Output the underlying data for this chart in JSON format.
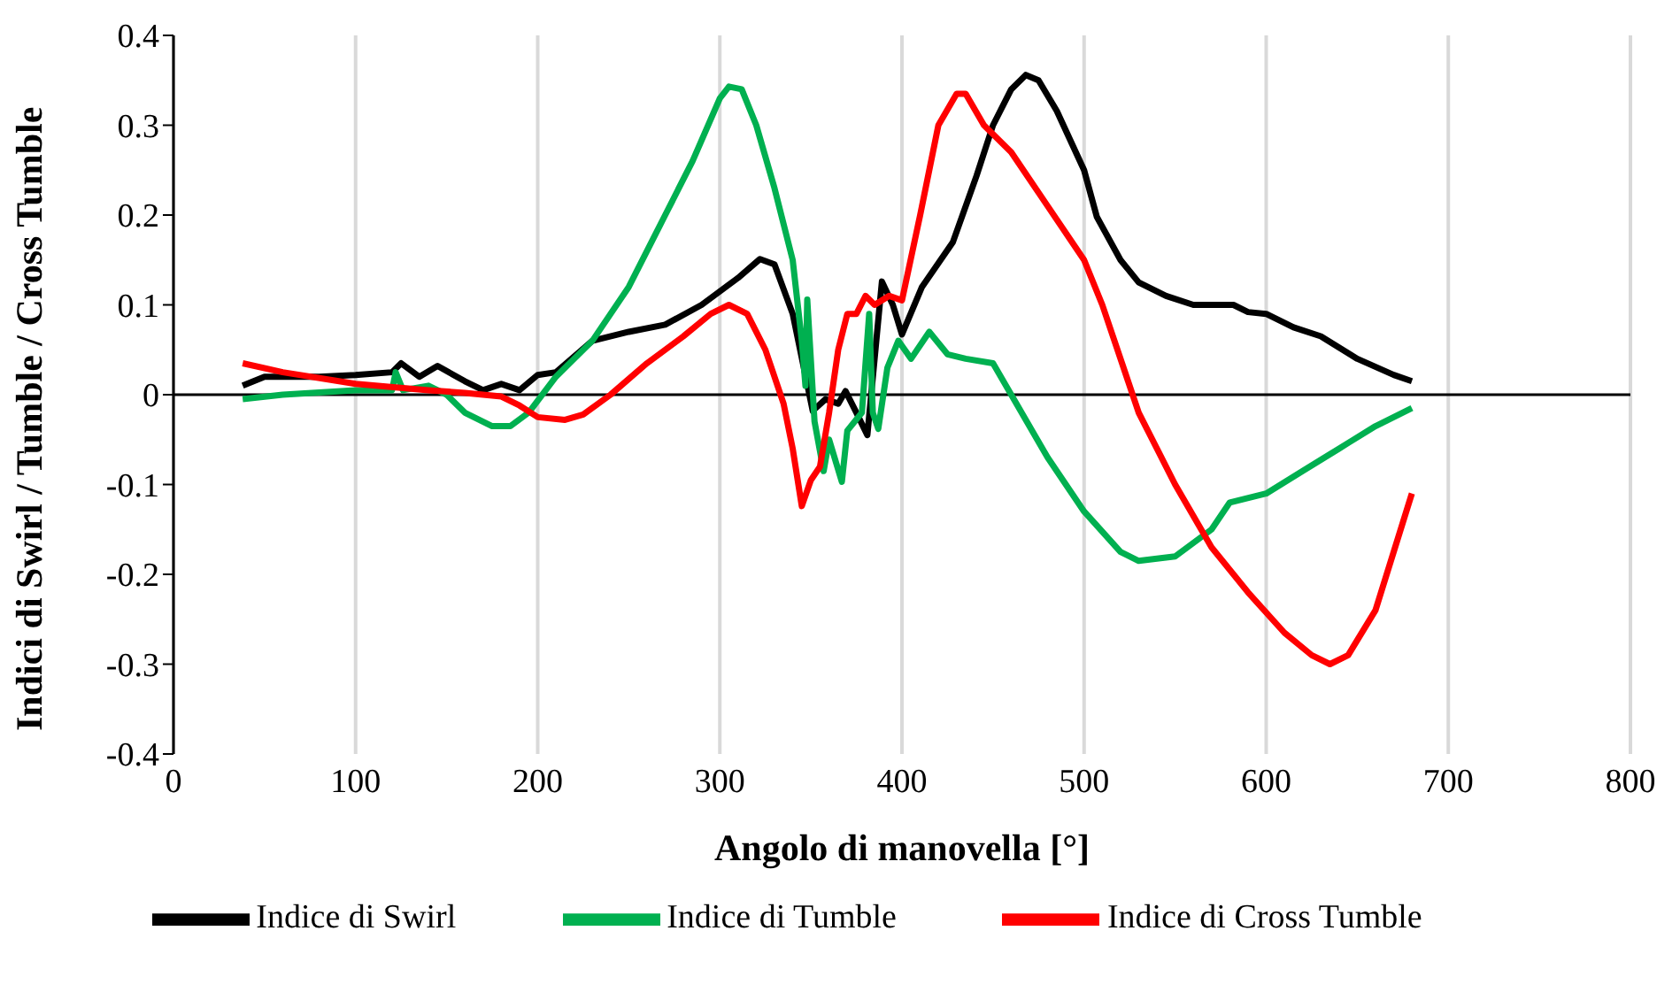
{
  "chart_data": {
    "type": "line",
    "xlabel": "Angolo di manovella [°]",
    "ylabel": "Indici di Swirl / Tumble / Cross Tumble",
    "xlim": [
      0,
      800
    ],
    "xticks": [
      0,
      100,
      200,
      300,
      400,
      500,
      600,
      700,
      800
    ],
    "ylim": [
      -0.4,
      0.4
    ],
    "yticks": [
      -0.4,
      -0.3,
      -0.2,
      -0.1,
      0,
      0.1,
      0.2,
      0.3,
      0.4
    ],
    "grid": "x",
    "legend": "bottom",
    "marker": "none",
    "line_style": "solid",
    "ref_lines": [
      {
        "axis": "y",
        "value": 0,
        "color": "#000000"
      }
    ],
    "series": [
      {
        "name": "Indice di Swirl",
        "color": "#000000",
        "x": [
          38,
          50,
          80,
          100,
          120,
          125,
          135,
          145,
          160,
          170,
          180,
          190,
          200,
          210,
          230,
          250,
          270,
          290,
          310,
          322,
          330,
          340,
          351,
          358,
          365,
          369,
          375,
          381,
          389,
          395,
          400,
          411,
          428,
          441,
          450,
          460,
          468,
          475,
          485,
          500,
          507,
          520,
          530,
          545,
          560,
          575,
          580,
          582,
          590,
          600,
          615,
          630,
          650,
          670,
          680
        ],
        "values": [
          0.01,
          0.02,
          0.02,
          0.022,
          0.025,
          0.035,
          0.02,
          0.032,
          0.015,
          0.005,
          0.012,
          0.005,
          0.022,
          0.025,
          0.06,
          0.07,
          0.078,
          0.1,
          0.13,
          0.151,
          0.145,
          0.09,
          -0.018,
          -0.005,
          -0.01,
          0.004,
          -0.02,
          -0.045,
          0.126,
          0.1,
          0.067,
          0.12,
          0.17,
          0.244,
          0.3,
          0.34,
          0.356,
          0.35,
          0.316,
          0.25,
          0.198,
          0.15,
          0.125,
          0.11,
          0.1,
          0.1,
          0.1,
          0.1,
          0.092,
          0.09,
          0.075,
          0.065,
          0.04,
          0.022,
          0.015
        ]
      },
      {
        "name": "Indice di Tumble",
        "color": "#00b050",
        "x": [
          38,
          60,
          100,
          120,
          122,
          126,
          140,
          150,
          160,
          175,
          185,
          195,
          210,
          230,
          250,
          270,
          285,
          300,
          305,
          312,
          320,
          330,
          340,
          345,
          347,
          348,
          352,
          357,
          360,
          367,
          370,
          378,
          382,
          384,
          387,
          392,
          398,
          405,
          415,
          425,
          435,
          450,
          460,
          480,
          500,
          520,
          530,
          550,
          570,
          580,
          600,
          620,
          640,
          660,
          680
        ],
        "values": [
          -0.005,
          0.0,
          0.005,
          0.005,
          0.025,
          0.005,
          0.01,
          0.0,
          -0.02,
          -0.035,
          -0.035,
          -0.02,
          0.02,
          0.06,
          0.12,
          0.2,
          0.26,
          0.33,
          0.343,
          0.34,
          0.3,
          0.23,
          0.15,
          0.06,
          0.01,
          0.106,
          -0.03,
          -0.085,
          -0.05,
          -0.097,
          -0.04,
          -0.02,
          0.09,
          -0.02,
          -0.038,
          0.03,
          0.06,
          0.04,
          0.07,
          0.045,
          0.04,
          0.035,
          0.0,
          -0.07,
          -0.13,
          -0.175,
          -0.185,
          -0.18,
          -0.15,
          -0.12,
          -0.11,
          -0.085,
          -0.06,
          -0.035,
          -0.015
        ]
      },
      {
        "name": "Indice di Cross Tumble",
        "color": "#ff0000",
        "x": [
          38,
          60,
          100,
          140,
          160,
          180,
          190,
          200,
          215,
          225,
          240,
          260,
          280,
          295,
          305,
          315,
          325,
          335,
          340,
          345,
          350,
          355,
          360,
          365,
          370,
          375,
          380,
          385,
          393,
          400,
          410,
          420,
          430,
          435,
          445,
          460,
          480,
          500,
          510,
          520,
          530,
          550,
          570,
          590,
          610,
          625,
          635,
          645,
          660,
          680
        ],
        "values": [
          0.035,
          0.025,
          0.012,
          0.005,
          0.002,
          -0.002,
          -0.012,
          -0.025,
          -0.028,
          -0.022,
          0.0,
          0.035,
          0.065,
          0.09,
          0.1,
          0.09,
          0.05,
          -0.01,
          -0.06,
          -0.124,
          -0.095,
          -0.08,
          -0.02,
          0.05,
          0.09,
          0.09,
          0.11,
          0.1,
          0.11,
          0.105,
          0.2,
          0.3,
          0.335,
          0.335,
          0.3,
          0.27,
          0.21,
          0.15,
          0.1,
          0.04,
          -0.02,
          -0.1,
          -0.17,
          -0.22,
          -0.265,
          -0.29,
          -0.3,
          -0.29,
          -0.24,
          -0.11
        ]
      }
    ]
  }
}
